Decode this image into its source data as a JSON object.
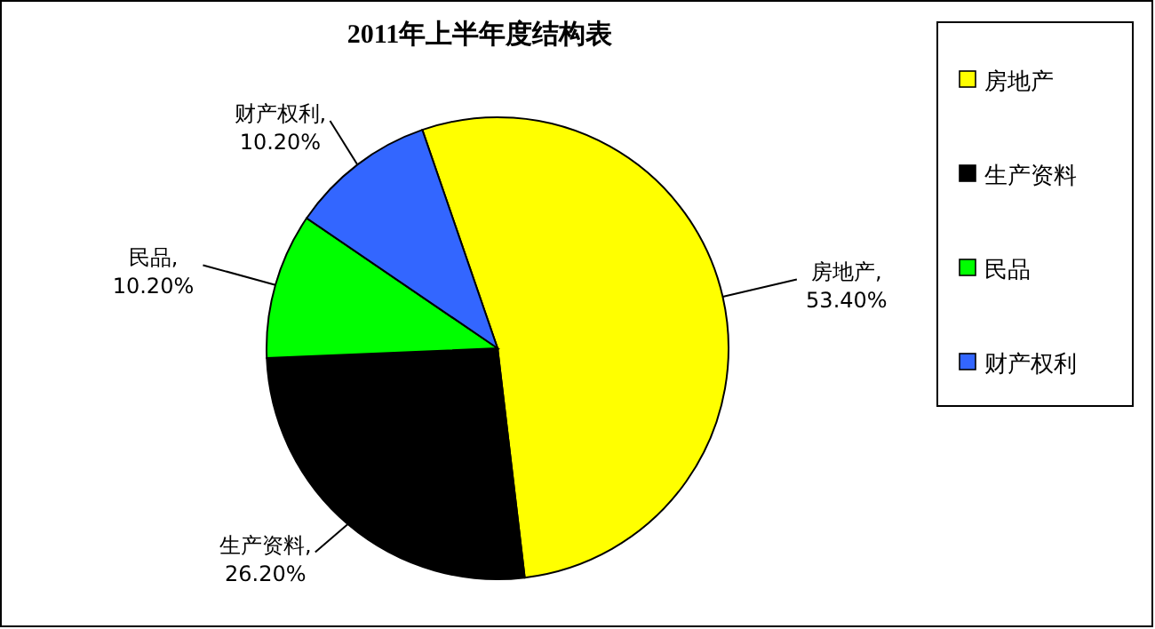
{
  "chart_data": {
    "type": "pie",
    "title": "2011年上半年度结构表",
    "categories": [
      "房地产",
      "生产资料",
      "民品",
      "财产权利"
    ],
    "values": [
      53.4,
      26.2,
      10.2,
      10.2
    ],
    "colors": [
      "#ffff00",
      "#000000",
      "#00ff00",
      "#3366ff"
    ],
    "value_labels": [
      "房地产,\n53.40%",
      "生产资料,\n26.20%",
      "民品,\n10.20%",
      "财产权利,\n10.20%"
    ],
    "legend": "right"
  }
}
